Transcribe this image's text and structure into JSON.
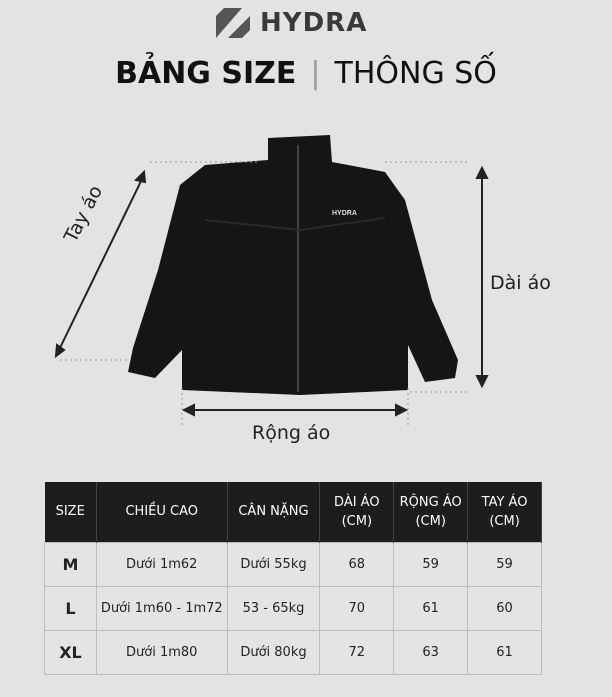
{
  "brand": {
    "name": "HYDRA",
    "logo_icon": "hydra-h-logo"
  },
  "title": {
    "main": "BẢNG SIZE",
    "separator": "|",
    "sub": "THÔNG SỐ"
  },
  "garment": {
    "jacket_label": "HYDRA"
  },
  "measure_labels": {
    "sleeve": "Tay áo",
    "length": "Dài áo",
    "width": "Rộng áo"
  },
  "table": {
    "headers": [
      "SIZE",
      "CHIỀU CAO",
      "CÂN NẶNG",
      "DÀI ÁO\n(CM)",
      "RỘNG ÁO\n(CM)",
      "TAY ÁO\n(CM)"
    ],
    "header_lines": [
      [
        "SIZE"
      ],
      [
        "CHIỀU CAO"
      ],
      [
        "CÂN NẶNG"
      ],
      [
        "DÀI ÁO",
        "(CM)"
      ],
      [
        "RỘNG ÁO",
        "(CM)"
      ],
      [
        "TAY ÁO",
        "(CM)"
      ]
    ],
    "rows": [
      [
        "M",
        "Dưới 1m62",
        "Dưới 55kg",
        "68",
        "59",
        "59"
      ],
      [
        "L",
        "Dưới 1m60 - 1m72",
        "53 - 65kg",
        "70",
        "61",
        "60"
      ],
      [
        "XL",
        "Dưới 1m80",
        "Dưới 80kg",
        "72",
        "63",
        "61"
      ]
    ]
  },
  "colors": {
    "background": "#e3e3e3",
    "header": "#1e1c1c"
  }
}
